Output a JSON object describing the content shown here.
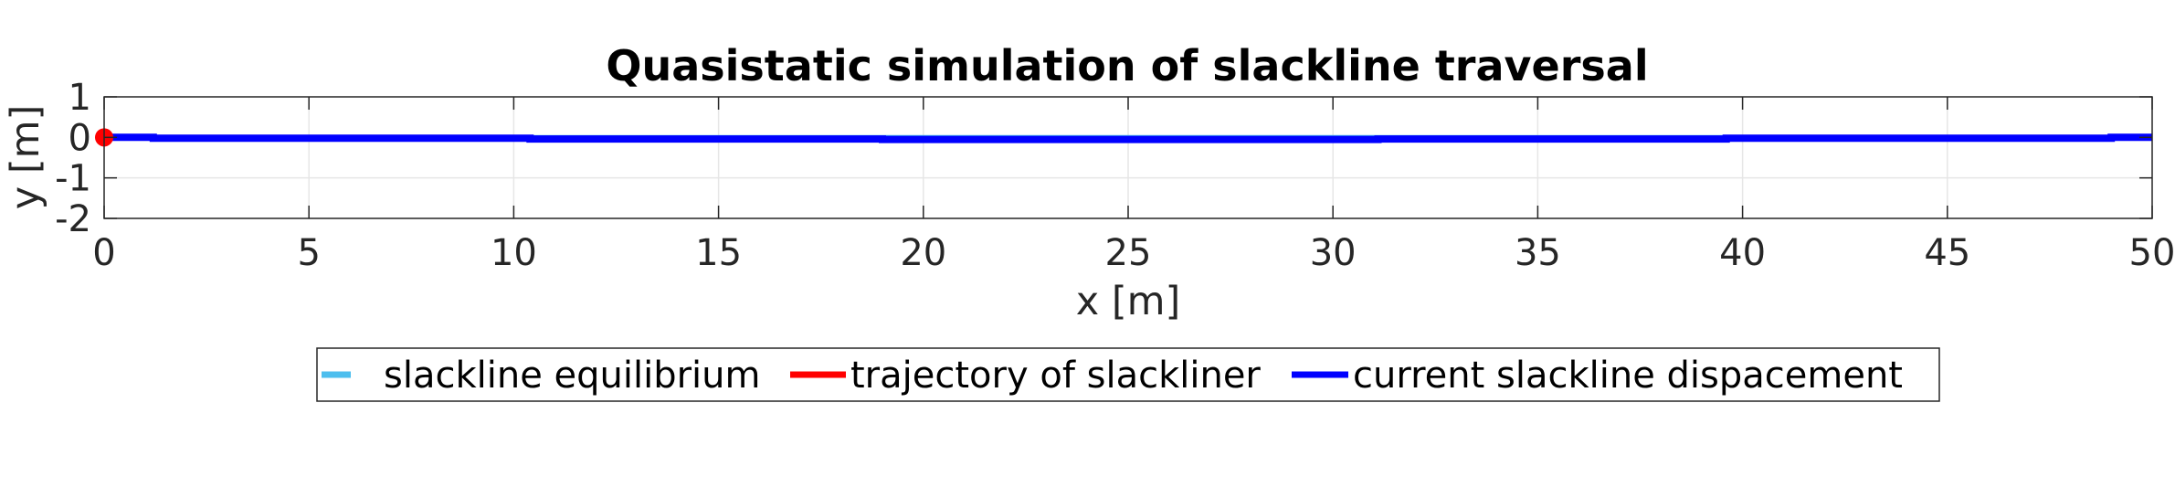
{
  "chart_data": {
    "type": "line",
    "title": "Quasistatic simulation of slackline traversal",
    "xlabel": "x [m]",
    "ylabel": "y [m]",
    "xlim": [
      0,
      50
    ],
    "ylim": [
      -2,
      1
    ],
    "xticks": [
      0,
      5,
      10,
      15,
      20,
      25,
      30,
      35,
      40,
      45,
      50
    ],
    "yticks": [
      1,
      0,
      -1,
      -2
    ],
    "grid": true,
    "legend_position": "bottom-center, outside",
    "series": [
      {
        "name": "slackline equilibrium",
        "color": "#4DBEEE",
        "style": "solid",
        "x": [
          0,
          50
        ],
        "y": [
          0,
          0
        ]
      },
      {
        "name": "trajectory of slackliner",
        "color": "#FF0000",
        "style": "solid",
        "x": [
          0
        ],
        "y": [
          0
        ]
      },
      {
        "name": "current slackline dispacement",
        "color": "#0000FF",
        "style": "solid",
        "x": [
          0,
          1.2,
          1.2,
          10.4,
          10.4,
          19,
          19,
          31.1,
          31.1,
          39.6,
          39.6,
          49,
          49,
          50
        ],
        "y": [
          0,
          0,
          -0.02,
          -0.02,
          -0.04,
          -0.04,
          -0.05,
          -0.05,
          -0.04,
          -0.04,
          -0.02,
          -0.02,
          0,
          0
        ]
      }
    ],
    "markers": [
      {
        "name": "slackliner position",
        "color": "#FF0000",
        "x": 0,
        "y": 0
      }
    ]
  }
}
